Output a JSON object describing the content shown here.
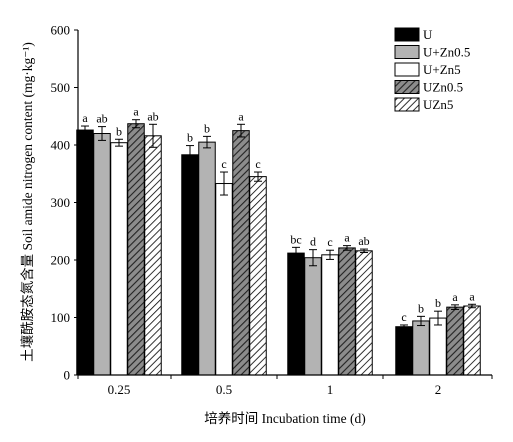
{
  "chart_data": {
    "type": "bar",
    "xlabel": "培养时间 Incubation time (d)",
    "ylabel": "土壤酰胺态氮含量 Soil amide nitrogen content (mg·kg⁻¹)",
    "ylim": [
      0,
      600
    ],
    "yticks": [
      0,
      100,
      200,
      300,
      400,
      500,
      600
    ],
    "categories": [
      "0.25",
      "0.5",
      "1",
      "2"
    ],
    "legend_position": "top-right",
    "series": [
      {
        "name": "U",
        "pattern": "solid-black",
        "values": [
          426,
          383,
          212,
          84
        ],
        "errors": [
          7,
          16,
          10,
          3
        ],
        "labels": [
          "a",
          "b",
          "bc",
          "c"
        ]
      },
      {
        "name": "U+Zn0.5",
        "pattern": "solid-gray",
        "values": [
          420,
          405,
          204,
          94
        ],
        "errors": [
          12,
          10,
          14,
          8
        ],
        "labels": [
          "ab",
          "b",
          "d",
          "b"
        ]
      },
      {
        "name": "U+Zn5",
        "pattern": "white",
        "values": [
          404,
          333,
          209,
          99
        ],
        "errors": [
          6,
          20,
          8,
          12
        ],
        "labels": [
          "b",
          "c",
          "c",
          "b"
        ]
      },
      {
        "name": "UZn0.5",
        "pattern": "hatch-gray",
        "values": [
          437,
          425,
          221,
          118
        ],
        "errors": [
          7,
          11,
          4,
          4
        ],
        "labels": [
          "a",
          "a",
          "a",
          "a"
        ]
      },
      {
        "name": "UZn5",
        "pattern": "hatch-white",
        "values": [
          416,
          345,
          216,
          120
        ],
        "errors": [
          20,
          8,
          3,
          3
        ],
        "labels": [
          "ab",
          "c",
          "ab",
          "a"
        ]
      }
    ]
  }
}
